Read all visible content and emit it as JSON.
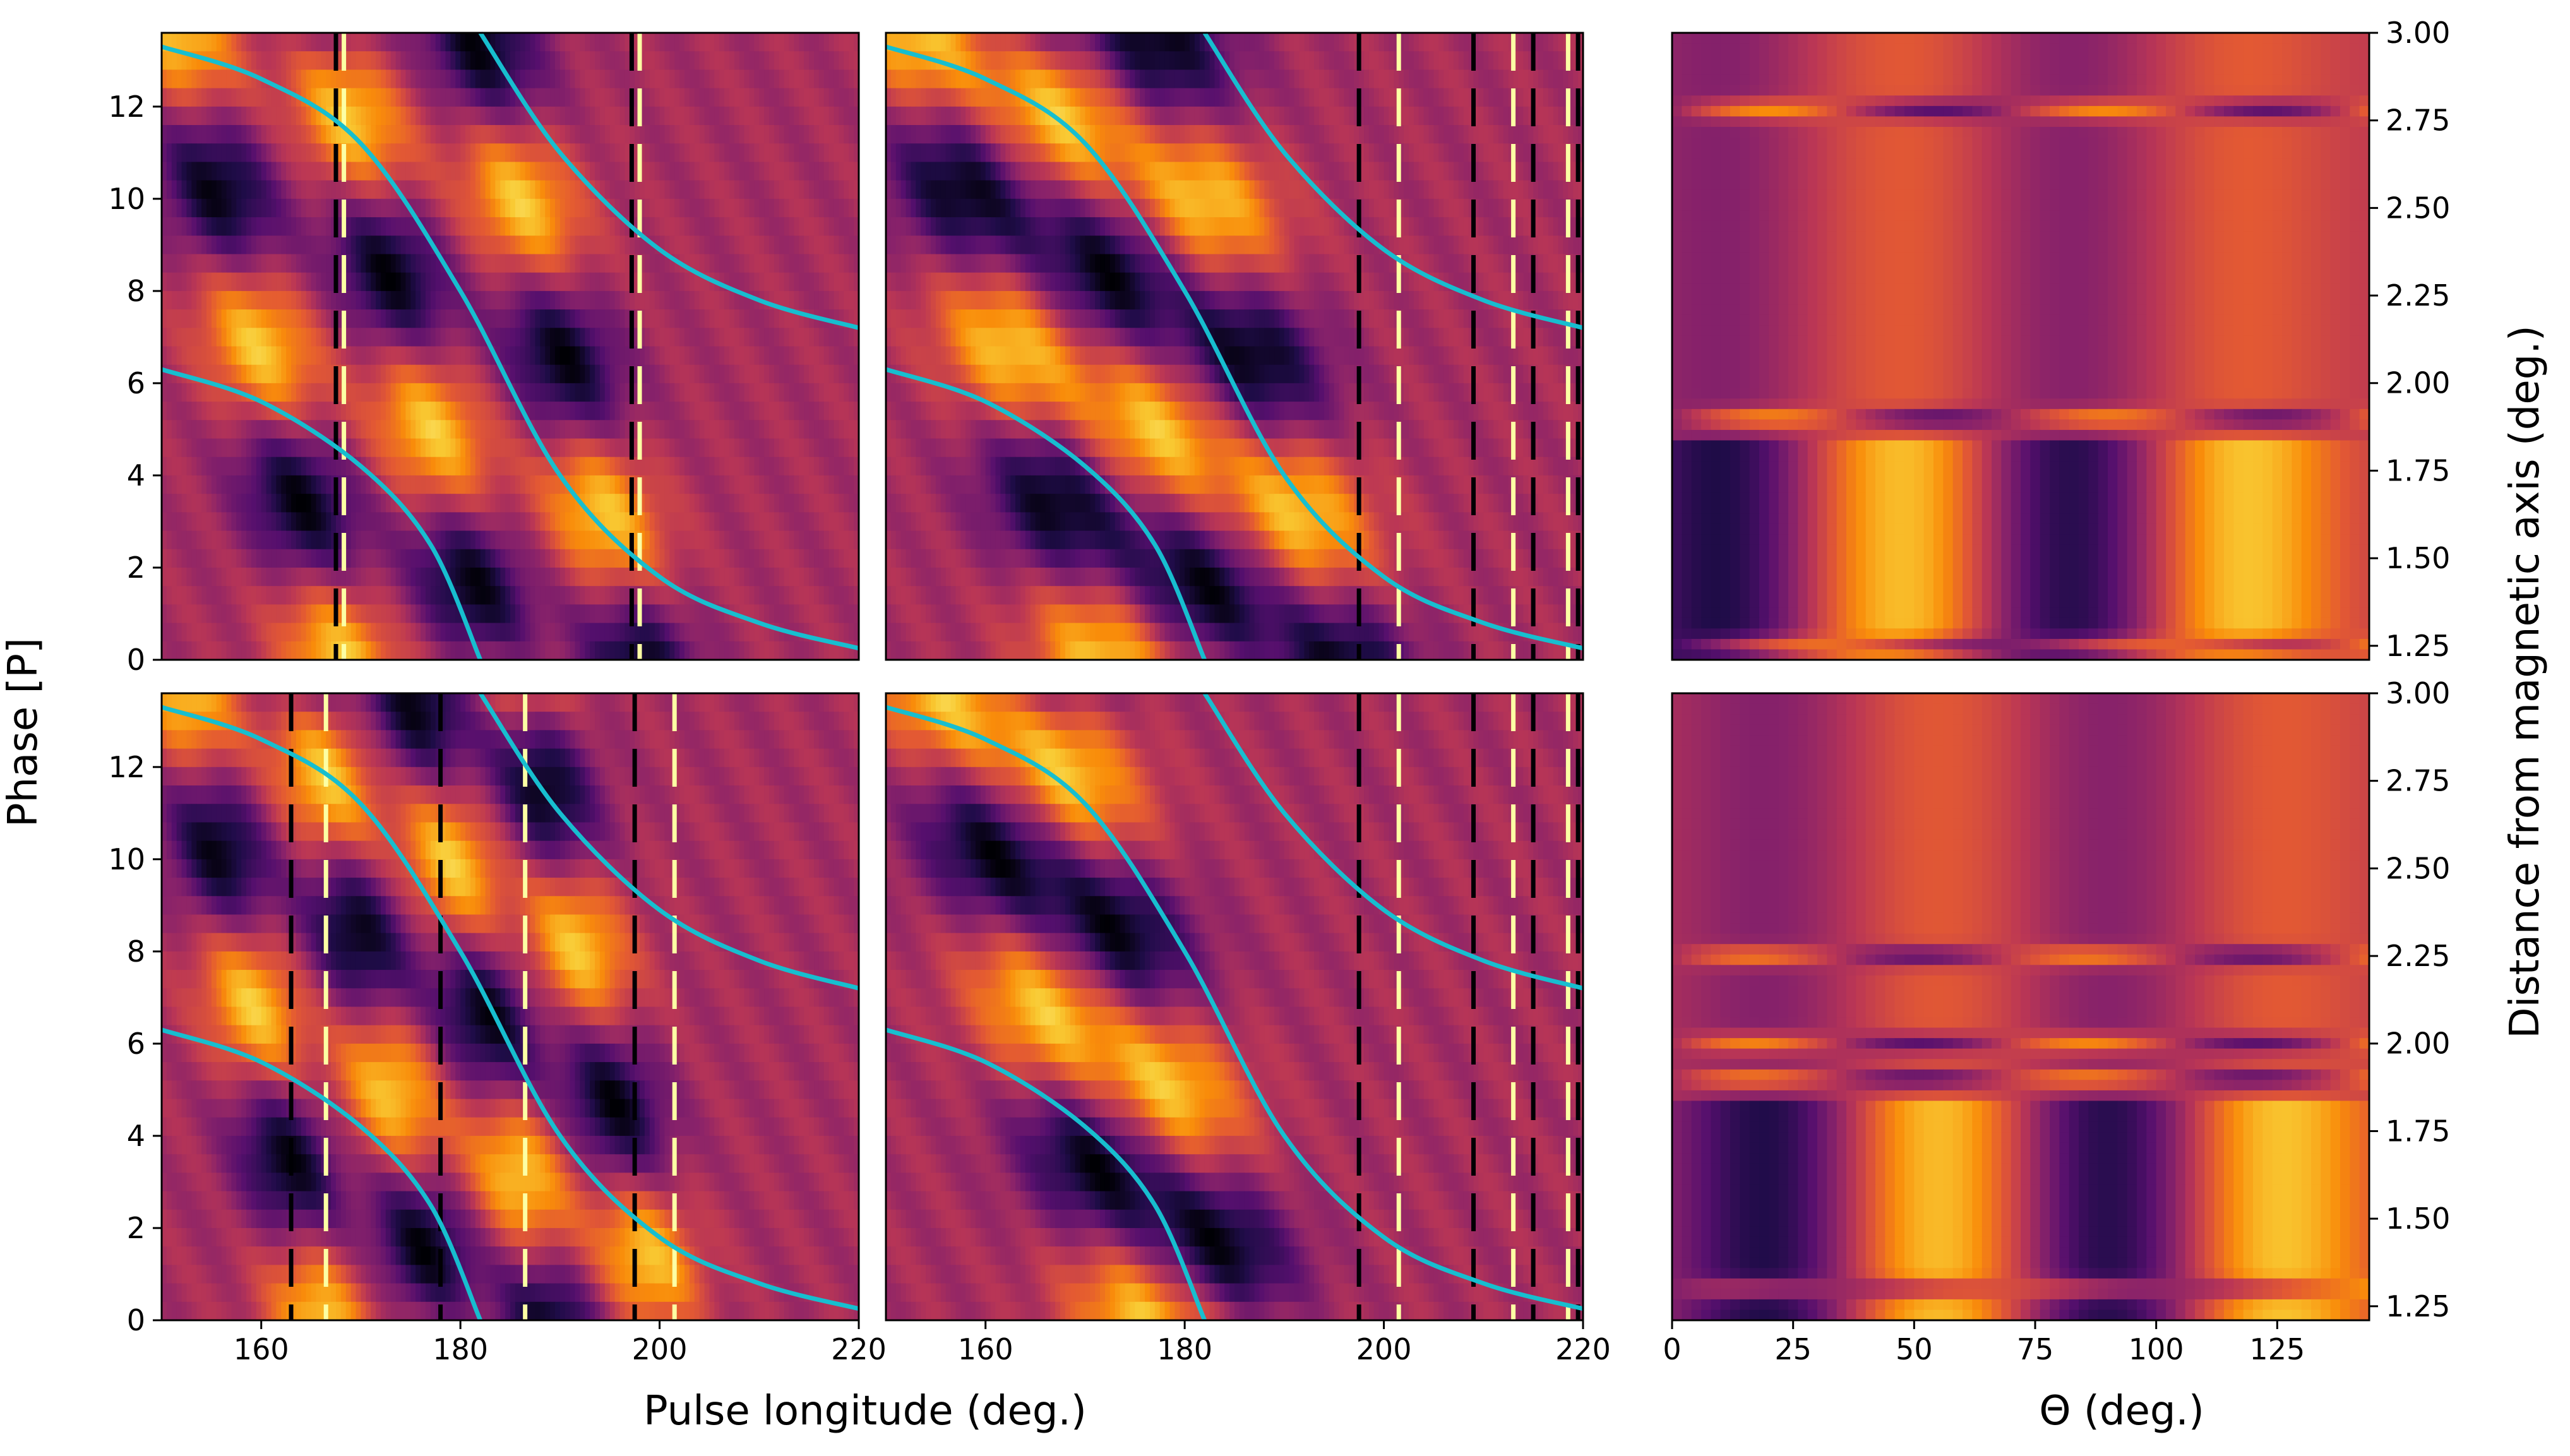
{
  "figure": {
    "ylabel_left": "Phase [P]",
    "xlabel_left": "Pulse longitude (deg.)",
    "xlabel_right": "Θ (deg.)",
    "ylabel_right": "Distance from magnetic axis (deg.)",
    "colormap": "inferno",
    "curve_color": "#17becf",
    "edge_color": "#000000"
  },
  "chart_data": [
    {
      "id": "top-left",
      "type": "heatmap",
      "xlim": [
        150,
        220
      ],
      "ylim": [
        0,
        13.6
      ],
      "xticks": [],
      "yticks": [
        0,
        2,
        4,
        6,
        8,
        10,
        12
      ],
      "drift_bands": {
        "x_at_phase0": [
          168,
          183,
          198
        ],
        "slope_deg_per_phase": 1.2,
        "width_deg": 4
      },
      "vertical_artifacts_deg": [
        167.5,
        168.3,
        197.2,
        198
      ],
      "curves": [
        {
          "name": "",
          "points": [
            [
              150,
              6.3
            ],
            [
              160,
              5.6
            ],
            [
              170,
              4.2
            ],
            [
              177,
              2.5
            ],
            [
              182,
              0
            ]
          ]
        },
        {
          "name": "",
          "points": [
            [
              150,
              13.3
            ],
            [
              160,
              12.6
            ],
            [
              170,
              11.2
            ],
            [
              180,
              8.0
            ],
            [
              190,
              4.0
            ],
            [
              200,
              1.8
            ],
            [
              210,
              0.8
            ],
            [
              220,
              0.25
            ]
          ]
        },
        {
          "name": "",
          "points": [
            [
              182,
              13.6
            ],
            [
              190,
              11.0
            ],
            [
              200,
              8.9
            ],
            [
              210,
              7.8
            ],
            [
              220,
              7.2
            ]
          ]
        }
      ]
    },
    {
      "id": "top-middle",
      "type": "heatmap",
      "xlim": [
        150,
        220
      ],
      "ylim": [
        0,
        13.6
      ],
      "xticks": [],
      "yticks": [],
      "drift_bands": {
        "x_at_phase0": [
          172,
          184,
          196
        ],
        "slope_deg_per_phase": 1.4,
        "width_deg": 5
      },
      "vertical_artifacts_deg": [
        197.5,
        201.5,
        209,
        213,
        215,
        218.5,
        219.5
      ],
      "curves": [
        {
          "name": "",
          "points": [
            [
              150,
              6.3
            ],
            [
              160,
              5.6
            ],
            [
              170,
              4.2
            ],
            [
              177,
              2.5
            ],
            [
              182,
              0
            ]
          ]
        },
        {
          "name": "",
          "points": [
            [
              150,
              13.3
            ],
            [
              160,
              12.6
            ],
            [
              170,
              11.2
            ],
            [
              180,
              8.0
            ],
            [
              190,
              4.0
            ],
            [
              200,
              1.8
            ],
            [
              210,
              0.8
            ],
            [
              220,
              0.25
            ]
          ]
        },
        {
          "name": "",
          "points": [
            [
              182,
              13.6
            ],
            [
              190,
              11.0
            ],
            [
              200,
              8.9
            ],
            [
              210,
              7.8
            ],
            [
              220,
              7.2
            ]
          ]
        }
      ]
    },
    {
      "id": "bottom-left",
      "type": "heatmap",
      "xlim": [
        150,
        220
      ],
      "ylim": [
        0,
        13.6
      ],
      "xticks": [
        160,
        180,
        200,
        220
      ],
      "yticks": [
        0,
        2,
        4,
        6,
        8,
        10,
        12
      ],
      "drift_bands": {
        "x_at_phase0": [
          166,
          178,
          189,
          200
        ],
        "slope_deg_per_phase": 1.0,
        "width_deg": 3.5
      },
      "vertical_artifacts_deg": [
        163,
        166.5,
        178,
        186.5,
        197.5,
        201.5
      ],
      "curves": [
        {
          "name": "",
          "points": [
            [
              150,
              6.3
            ],
            [
              160,
              5.6
            ],
            [
              170,
              4.2
            ],
            [
              177,
              2.5
            ],
            [
              182,
              0
            ]
          ]
        },
        {
          "name": "",
          "points": [
            [
              150,
              13.3
            ],
            [
              160,
              12.6
            ],
            [
              170,
              11.2
            ],
            [
              180,
              8.0
            ],
            [
              190,
              4.0
            ],
            [
              200,
              1.8
            ],
            [
              210,
              0.8
            ],
            [
              220,
              0.25
            ]
          ]
        },
        {
          "name": "",
          "points": [
            [
              182,
              13.6
            ],
            [
              190,
              11.0
            ],
            [
              200,
              8.9
            ],
            [
              210,
              7.8
            ],
            [
              220,
              7.2
            ]
          ]
        }
      ]
    },
    {
      "id": "bottom-middle",
      "type": "heatmap",
      "xlim": [
        150,
        220
      ],
      "ylim": [
        0,
        13.6
      ],
      "xticks": [
        160,
        180,
        200,
        220
      ],
      "yticks": [],
      "drift_bands": {
        "x_at_phase0": [
          176,
          186
        ],
        "slope_deg_per_phase": 1.5,
        "width_deg": 5
      },
      "vertical_artifacts_deg": [
        197.5,
        201.5,
        209,
        213,
        215,
        218.5,
        219.5
      ],
      "curves": [
        {
          "name": "",
          "points": [
            [
              150,
              6.3
            ],
            [
              160,
              5.6
            ],
            [
              170,
              4.2
            ],
            [
              177,
              2.5
            ],
            [
              182,
              0
            ]
          ]
        },
        {
          "name": "",
          "points": [
            [
              150,
              13.3
            ],
            [
              160,
              12.6
            ],
            [
              170,
              11.2
            ],
            [
              180,
              8.0
            ],
            [
              190,
              4.0
            ],
            [
              200,
              1.8
            ],
            [
              210,
              0.8
            ],
            [
              220,
              0.25
            ]
          ]
        },
        {
          "name": "",
          "points": [
            [
              182,
              13.6
            ],
            [
              190,
              11.0
            ],
            [
              200,
              8.9
            ],
            [
              210,
              7.8
            ],
            [
              220,
              7.2
            ]
          ]
        }
      ]
    },
    {
      "id": "top-right",
      "type": "heatmap",
      "xlim": [
        0,
        144
      ],
      "ylim": [
        1.21,
        3.0
      ],
      "xticks": [],
      "yticks": [
        1.25,
        1.5,
        1.75,
        2.0,
        2.25,
        2.5,
        2.75,
        3.0
      ],
      "ytick_labels": [
        "1.25",
        "1.50",
        "1.75",
        "2.00",
        "2.25",
        "2.50",
        "2.75",
        "3.00"
      ],
      "bright_theta_deg": [
        48,
        118
      ],
      "dark_theta_deg": [
        10,
        82
      ],
      "horizontal_bands": [
        1.25,
        1.9,
        2.78
      ]
    },
    {
      "id": "bottom-right",
      "type": "heatmap",
      "xlim": [
        0,
        144
      ],
      "ylim": [
        1.21,
        3.0
      ],
      "xticks": [
        0,
        25,
        50,
        75,
        100,
        125
      ],
      "yticks": [
        1.25,
        1.5,
        1.75,
        2.0,
        2.25,
        2.5,
        2.75,
        3.0
      ],
      "ytick_labels": [
        "1.25",
        "1.50",
        "1.75",
        "2.00",
        "2.25",
        "2.50",
        "2.75",
        "3.00"
      ],
      "bright_theta_deg": [
        55,
        125
      ],
      "dark_theta_deg": [
        20,
        90
      ],
      "horizontal_bands": [
        1.3,
        1.9,
        2.0,
        2.25
      ]
    }
  ]
}
